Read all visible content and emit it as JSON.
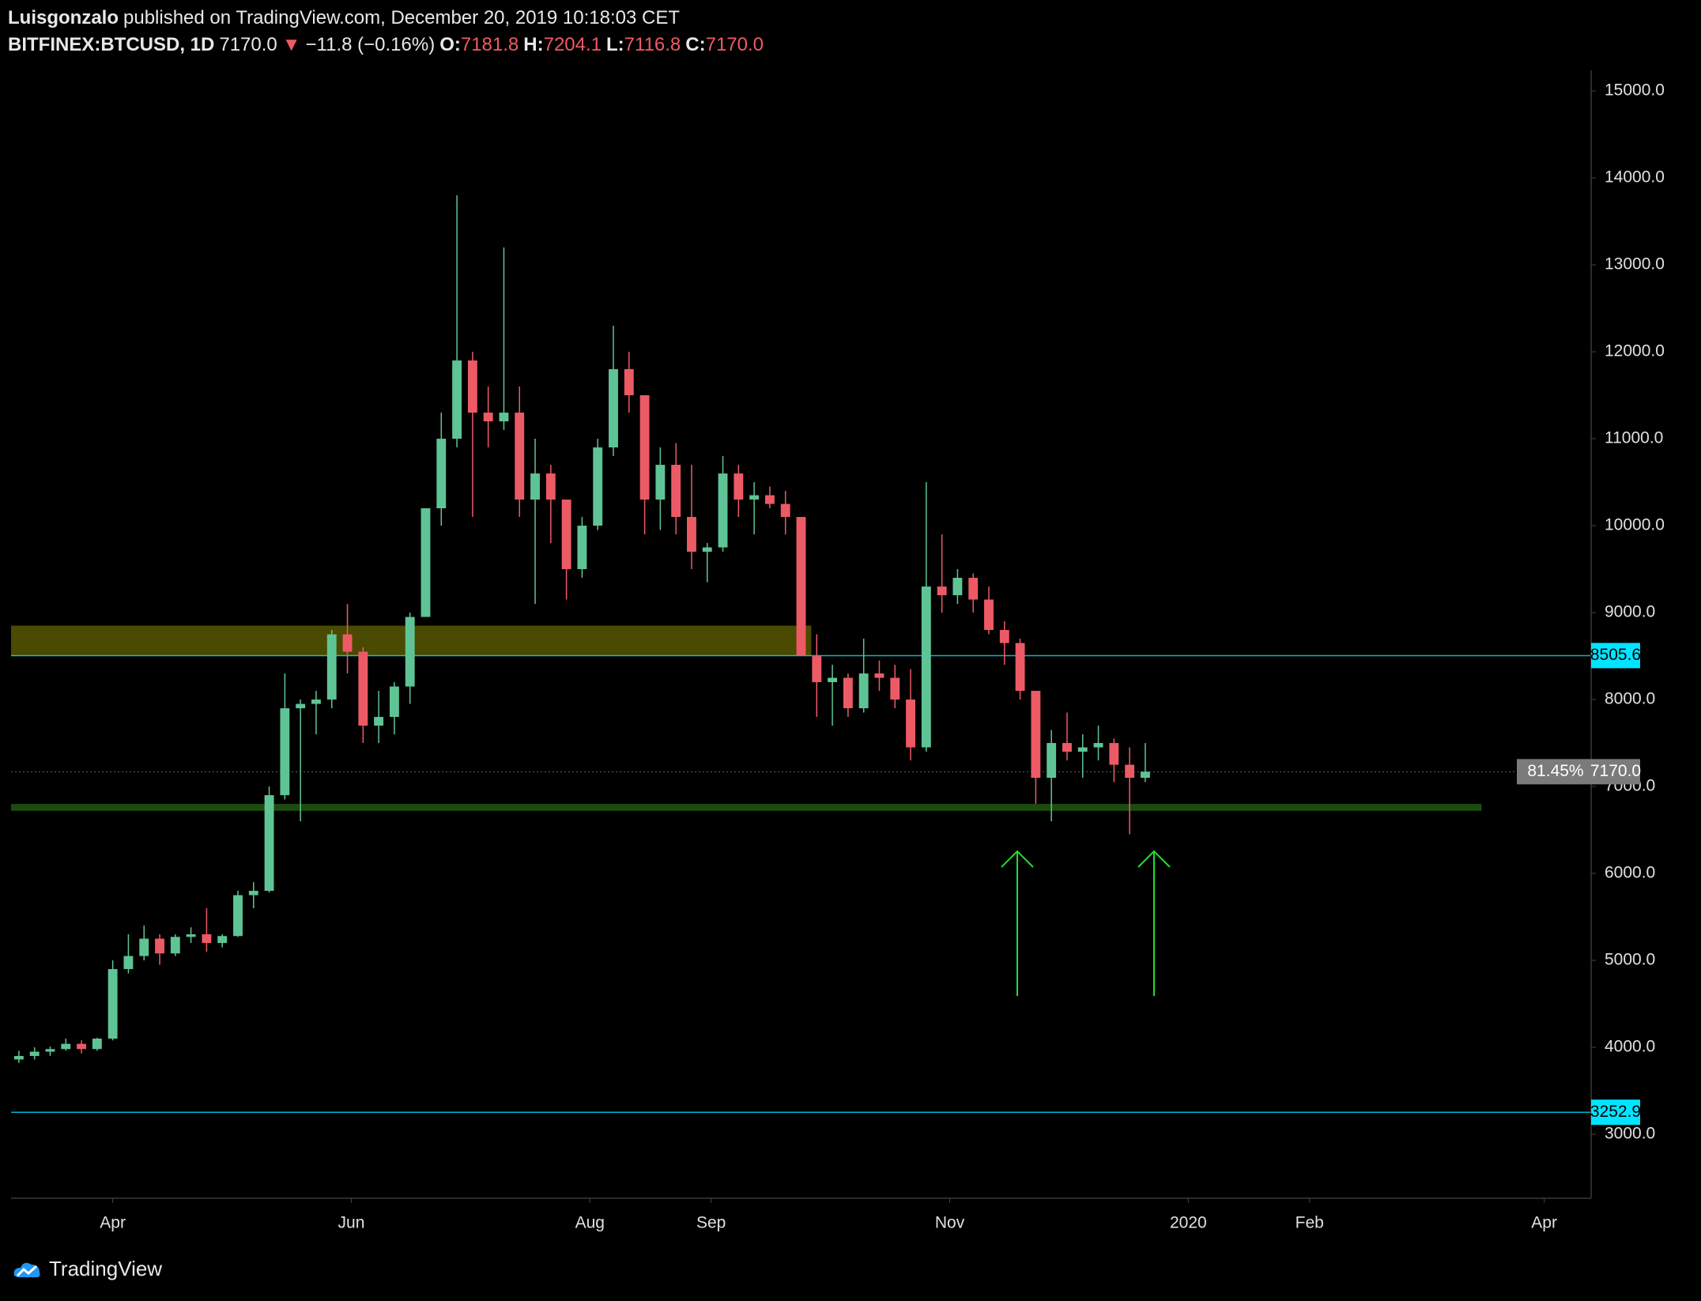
{
  "header": {
    "author": "Luisgonzalo",
    "published": "published on TradingView.com, December 20, 2019 10:18:03 CET",
    "symbol": "BITFINEX:BTCUSD, 1D",
    "last": "7170.0",
    "arrow": "▼",
    "change": "−11.8 (−0.16%)",
    "ohlc": [
      {
        "key": "O:",
        "value": "7181.8"
      },
      {
        "key": "H:",
        "value": "7204.1"
      },
      {
        "key": "L:",
        "value": "7116.8"
      },
      {
        "key": "C:",
        "value": "7170.0"
      }
    ]
  },
  "footer": {
    "brand": "TradingView"
  },
  "chart_data": {
    "type": "candlestick",
    "up_color": "#5fc495",
    "down_color": "#ec5a66",
    "categories": [
      null,
      null,
      null,
      null,
      null,
      null,
      null,
      null,
      null,
      null,
      null,
      null,
      null,
      null,
      null,
      null,
      null,
      null,
      null,
      null,
      null,
      null,
      null,
      null,
      null,
      null,
      null,
      null,
      null,
      null,
      null,
      null,
      null,
      null,
      null,
      null,
      null,
      null,
      null,
      null,
      null,
      null,
      null,
      null,
      null,
      null,
      null,
      null,
      null,
      null,
      null,
      null,
      null,
      null,
      null,
      null,
      null,
      null,
      null,
      null,
      null,
      null,
      null,
      null,
      null,
      null,
      null,
      null,
      null,
      null,
      null,
      null,
      null
    ],
    "open": [
      3860,
      3900,
      3950,
      3980,
      4040,
      3980,
      4100,
      4900,
      5050,
      5250,
      5080,
      5270,
      5300,
      5200,
      5280,
      5750,
      5800,
      6900,
      7900,
      7950,
      8000,
      8750,
      8550,
      7700,
      7800,
      8150,
      8950,
      10200,
      11000,
      11900,
      11300,
      11200,
      11300,
      10300,
      10600,
      10300,
      9500,
      10000,
      10900,
      11800,
      11500,
      10300,
      10700,
      10100,
      9700,
      9750,
      10600,
      10300,
      10350,
      10250,
      10100,
      8500,
      8200,
      8250,
      7900,
      8300,
      8250,
      8000,
      7450,
      9300,
      9200,
      9400,
      9150,
      8800,
      8650,
      8100,
      7100,
      7500,
      7400,
      7450,
      7500,
      7250,
      7100
    ],
    "high": [
      3960,
      4000,
      4010,
      4100,
      4080,
      4110,
      5000,
      5300,
      5400,
      5300,
      5300,
      5380,
      5600,
      5300,
      5800,
      5900,
      7000,
      8300,
      8000,
      8100,
      8800,
      9100,
      8600,
      8100,
      8200,
      9000,
      10200,
      11300,
      13800,
      12000,
      11600,
      13200,
      11600,
      11000,
      10700,
      10300,
      10100,
      11000,
      12300,
      12000,
      11500,
      10900,
      10950,
      10700,
      9800,
      10800,
      10700,
      10500,
      10450,
      10400,
      10100,
      8750,
      8400,
      8300,
      8700,
      8450,
      8400,
      8350,
      10500,
      9900,
      9500,
      9450,
      9300,
      8900,
      8700,
      8100,
      7650,
      7850,
      7600,
      7700,
      7550,
      7450,
      7500
    ],
    "low": [
      3820,
      3860,
      3900,
      3960,
      3930,
      3960,
      4080,
      4850,
      5000,
      4950,
      5050,
      5200,
      5100,
      5150,
      5270,
      5600,
      5780,
      6850,
      6600,
      7600,
      7900,
      8300,
      7500,
      7500,
      7600,
      7950,
      8950,
      10000,
      10900,
      10100,
      10900,
      11100,
      10100,
      9100,
      9800,
      9150,
      9400,
      9950,
      10800,
      11300,
      9900,
      9950,
      9900,
      9500,
      9350,
      9700,
      10100,
      9900,
      10200,
      9900,
      8500,
      7800,
      7700,
      7800,
      7850,
      8100,
      7900,
      7300,
      7400,
      9000,
      9100,
      9000,
      8750,
      8400,
      8000,
      6800,
      6600,
      7300,
      7100,
      7300,
      7050,
      6450,
      7050
    ],
    "close": [
      3900,
      3950,
      3980,
      4040,
      3980,
      4100,
      4900,
      5050,
      5250,
      5080,
      5270,
      5300,
      5200,
      5280,
      5750,
      5800,
      6900,
      7900,
      7950,
      8000,
      8750,
      8550,
      7700,
      7800,
      8150,
      8950,
      10200,
      11000,
      11900,
      11300,
      11200,
      11300,
      10300,
      10600,
      10300,
      9500,
      10000,
      10900,
      11800,
      11500,
      10300,
      10700,
      10100,
      9700,
      9750,
      10600,
      10300,
      10350,
      10250,
      10100,
      8500,
      8200,
      8250,
      7900,
      8300,
      8250,
      8000,
      7450,
      9300,
      9200,
      9400,
      9150,
      8800,
      8650,
      8100,
      7100,
      7500,
      7400,
      7450,
      7500,
      7250,
      7100,
      7170
    ],
    "xlim": [
      -0.5,
      100.5
    ],
    "xticks": [
      {
        "value": 6,
        "label": "Apr"
      },
      {
        "value": 21.25,
        "label": "Jun"
      },
      {
        "value": 36.5,
        "label": "Aug"
      },
      {
        "value": 44.25,
        "label": "Sep"
      },
      {
        "value": 59.5,
        "label": "Nov"
      },
      {
        "value": 74.75,
        "label": "2020"
      },
      {
        "value": 82.5,
        "label": "Feb"
      },
      {
        "value": 97.5,
        "label": "Apr"
      }
    ],
    "ylim": [
      2264,
      15237
    ],
    "yticks": [
      {
        "value": 3000,
        "label": "3000.0"
      },
      {
        "value": 4000,
        "label": "4000.0"
      },
      {
        "value": 5000,
        "label": "5000.0"
      },
      {
        "value": 6000,
        "label": "6000.0"
      },
      {
        "value": 7000,
        "label": "7000.0"
      },
      {
        "value": 8000,
        "label": "8000.0"
      },
      {
        "value": 9000,
        "label": "9000.0"
      },
      {
        "value": 10000,
        "label": "10000.0"
      },
      {
        "value": 11000,
        "label": "11000.0"
      },
      {
        "value": 12000,
        "label": "12000.0"
      },
      {
        "value": 13000,
        "label": "13000.0"
      },
      {
        "value": 14000,
        "label": "14000.0"
      },
      {
        "value": 15000,
        "label": "15000.0"
      }
    ],
    "zones": [
      {
        "top": 8850,
        "bottom": 8500,
        "start": -0.5,
        "end": 50.65,
        "color": "#4a4a00"
      },
      {
        "top": 6800,
        "bottom": 6720,
        "start": -0.5,
        "end": 93.5,
        "color": "#1c4a10"
      }
    ],
    "hlines": [
      {
        "value": 8505.6,
        "label": "8505.6",
        "color": "#00e5ff"
      },
      {
        "value": 3252.9,
        "label": "3252.9",
        "color": "#00e5ff"
      }
    ],
    "last_price": {
      "value": 7170,
      "label": "7170.0",
      "percent": "81.45%",
      "color": "#7b7b7b"
    }
  }
}
